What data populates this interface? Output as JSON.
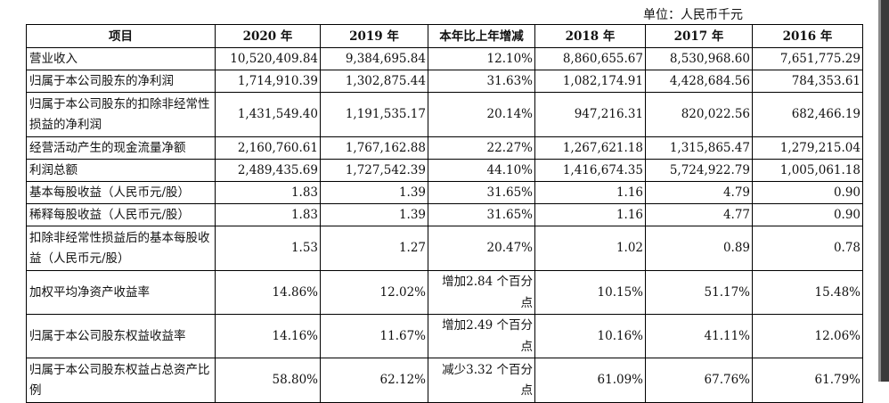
{
  "unit_label": "单位：人民币千元",
  "headers": [
    "项目",
    "2020 年",
    "2019 年",
    "本年比上年增减",
    "2018 年",
    "2017 年",
    "2016 年"
  ],
  "rows": [
    {
      "label": "营业收入",
      "cells": [
        "10,520,409.84",
        "9,384,695.84",
        "12.10%",
        "8,860,655.67",
        "8,530,968.60",
        "7,651,775.29"
      ]
    },
    {
      "label": "归属于本公司股东的净利润",
      "cells": [
        "1,714,910.39",
        "1,302,875.44",
        "31.63%",
        "1,082,174.91",
        "4,428,684.56",
        "784,353.61"
      ]
    },
    {
      "label": "归属于本公司股东的扣除非经常性损益的净利润",
      "cells": [
        "1,431,549.40",
        "1,191,535.17",
        "20.14%",
        "947,216.31",
        "820,022.56",
        "682,466.19"
      ]
    },
    {
      "label": "经营活动产生的现金流量净额",
      "cells": [
        "2,160,760.61",
        "1,767,162.88",
        "22.27%",
        "1,267,621.18",
        "1,315,865.47",
        "1,279,215.04"
      ]
    },
    {
      "label": "利润总额",
      "cells": [
        "2,489,435.69",
        "1,727,542.39",
        "44.10%",
        "1,416,674.35",
        "5,724,922.79",
        "1,005,061.18"
      ]
    },
    {
      "label": "基本每股收益（人民币元/股）",
      "cells": [
        "1.83",
        "1.39",
        "31.65%",
        "1.16",
        "4.79",
        "0.90"
      ]
    },
    {
      "label": "稀释每股收益（人民币元/股）",
      "cells": [
        "1.83",
        "1.39",
        "31.65%",
        "1.16",
        "4.77",
        "0.90"
      ]
    },
    {
      "label": "扣除非经常性损益后的基本每股收益（人民币元/股）",
      "cells": [
        "1.53",
        "1.27",
        "20.47%",
        "1.02",
        "0.89",
        "0.78"
      ]
    },
    {
      "label": "加权平均净资产收益率",
      "cells": [
        "14.86%",
        "12.02%",
        "增加2.84 个百分点",
        "10.15%",
        "51.17%",
        "15.48%"
      ]
    },
    {
      "label": "归属于本公司股东权益收益率",
      "cells": [
        "14.16%",
        "11.67%",
        "增加2.49 个百分点",
        "10.16%",
        "41.11%",
        "12.06%"
      ]
    },
    {
      "label": "归属于本公司股东权益占总资产比例",
      "cells": [
        "58.80%",
        "62.12%",
        "减少3.32 个百分点",
        "61.09%",
        "67.76%",
        "61.79%"
      ]
    }
  ]
}
